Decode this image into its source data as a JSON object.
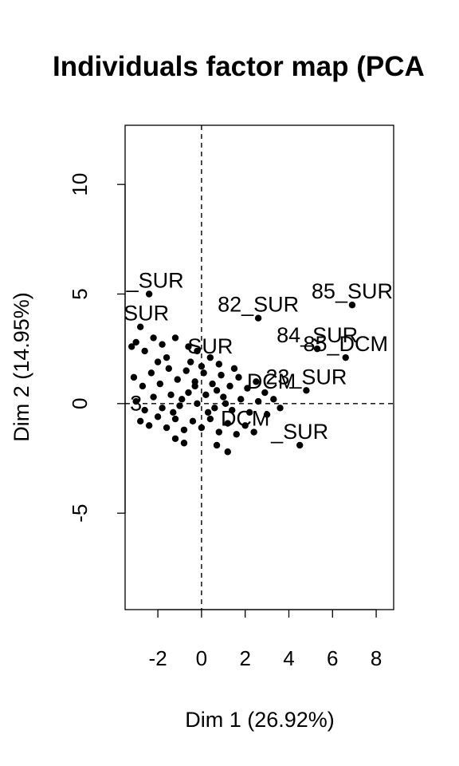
{
  "chart_data": {
    "type": "scatter",
    "title": "Individuals factor map (PCA",
    "xlabel": "Dim 1 (26.92%)",
    "ylabel": "Dim 2 (14.95%)",
    "xlim": [
      -3.5,
      8.8
    ],
    "ylim": [
      -9.4,
      12.7
    ],
    "xticks": [
      -2,
      0,
      2,
      4,
      6,
      8
    ],
    "yticks": [
      -5,
      0,
      5,
      10
    ],
    "reference_lines": {
      "x": 0,
      "y": 0
    },
    "grid": false,
    "legend": "none",
    "point_color": "#000000",
    "labeled_points": [
      {
        "label": "3_SUR",
        "x": -2.4,
        "y": 5.0
      },
      {
        "label": "_SUR",
        "x": -2.8,
        "y": 3.5
      },
      {
        "label": "82_SUR",
        "x": 2.6,
        "y": 3.9
      },
      {
        "label": "85_SUR",
        "x": 6.9,
        "y": 4.5
      },
      {
        "label": "84_SUR",
        "x": 5.3,
        "y": 2.5
      },
      {
        "label": "85_DCM",
        "x": 6.6,
        "y": 2.1
      },
      {
        "label": "SUR",
        "x": 0.4,
        "y": 2.0
      },
      {
        "label": "23_SUR",
        "x": 4.8,
        "y": 0.6
      },
      {
        "label": "DCM",
        "x": 3.2,
        "y": 0.4
      },
      {
        "label": "_SUR",
        "x": 4.5,
        "y": -1.9
      },
      {
        "label": "DCM",
        "x": 2.0,
        "y": -1.3
      },
      {
        "label": "3",
        "x": -3.0,
        "y": -0.6
      }
    ],
    "points": [
      {
        "x": -2.4,
        "y": 5.0
      },
      {
        "x": -2.8,
        "y": 3.5
      },
      {
        "x": 2.6,
        "y": 3.9
      },
      {
        "x": 6.9,
        "y": 4.5
      },
      {
        "x": 5.3,
        "y": 2.5
      },
      {
        "x": 6.6,
        "y": 2.1
      },
      {
        "x": 4.8,
        "y": 0.6
      },
      {
        "x": 4.5,
        "y": -1.9
      },
      {
        "x": 1.2,
        "y": -2.2
      },
      {
        "x": -1.2,
        "y": -1.6
      },
      {
        "x": -0.8,
        "y": -1.8
      },
      {
        "x": 0.7,
        "y": -1.9
      },
      {
        "x": -3.2,
        "y": 2.6
      },
      {
        "x": -3.0,
        "y": 2.8
      },
      {
        "x": -2.6,
        "y": 2.4
      },
      {
        "x": -2.2,
        "y": 3.0
      },
      {
        "x": -1.8,
        "y": 2.7
      },
      {
        "x": -1.2,
        "y": 3.0
      },
      {
        "x": -0.6,
        "y": 2.6
      },
      {
        "x": -0.2,
        "y": 2.4
      },
      {
        "x": 0.4,
        "y": 2.1
      },
      {
        "x": -3.1,
        "y": 1.2
      },
      {
        "x": -2.7,
        "y": 0.8
      },
      {
        "x": -2.3,
        "y": 1.4
      },
      {
        "x": -1.9,
        "y": 0.9
      },
      {
        "x": -1.5,
        "y": 1.6
      },
      {
        "x": -1.1,
        "y": 1.1
      },
      {
        "x": -0.7,
        "y": 1.5
      },
      {
        "x": -0.3,
        "y": 1.0
      },
      {
        "x": 0.1,
        "y": 1.4
      },
      {
        "x": 0.5,
        "y": 0.9
      },
      {
        "x": 0.9,
        "y": 1.3
      },
      {
        "x": 1.3,
        "y": 0.8
      },
      {
        "x": 1.7,
        "y": 1.2
      },
      {
        "x": 2.1,
        "y": 0.7
      },
      {
        "x": 2.5,
        "y": 1.0
      },
      {
        "x": 2.9,
        "y": 0.5
      },
      {
        "x": 3.3,
        "y": 0.2
      },
      {
        "x": -3.0,
        "y": 0.1
      },
      {
        "x": -2.6,
        "y": -0.3
      },
      {
        "x": -2.2,
        "y": 0.3
      },
      {
        "x": -1.8,
        "y": -0.2
      },
      {
        "x": -1.4,
        "y": 0.4
      },
      {
        "x": -1.0,
        "y": -0.1
      },
      {
        "x": -0.6,
        "y": 0.5
      },
      {
        "x": -0.2,
        "y": 0.0
      },
      {
        "x": 0.2,
        "y": 0.4
      },
      {
        "x": 0.6,
        "y": -0.2
      },
      {
        "x": 1.0,
        "y": 0.3
      },
      {
        "x": 1.4,
        "y": -0.3
      },
      {
        "x": 1.8,
        "y": 0.2
      },
      {
        "x": 2.2,
        "y": -0.4
      },
      {
        "x": 2.6,
        "y": 0.1
      },
      {
        "x": 3.0,
        "y": -0.5
      },
      {
        "x": 3.6,
        "y": -0.2
      },
      {
        "x": -2.8,
        "y": -0.8
      },
      {
        "x": -2.4,
        "y": -1.0
      },
      {
        "x": -2.0,
        "y": -0.6
      },
      {
        "x": -1.6,
        "y": -1.1
      },
      {
        "x": -1.2,
        "y": -0.7
      },
      {
        "x": -0.8,
        "y": -1.2
      },
      {
        "x": -0.4,
        "y": -0.8
      },
      {
        "x": 0.0,
        "y": -1.1
      },
      {
        "x": 0.4,
        "y": -0.7
      },
      {
        "x": 0.8,
        "y": -1.3
      },
      {
        "x": 1.2,
        "y": -0.9
      },
      {
        "x": 1.6,
        "y": -1.4
      },
      {
        "x": 2.0,
        "y": -1.0
      },
      {
        "x": 2.4,
        "y": -1.3
      },
      {
        "x": -0.5,
        "y": 1.9
      },
      {
        "x": 0.0,
        "y": 1.7
      },
      {
        "x": 0.8,
        "y": 1.8
      },
      {
        "x": -1.6,
        "y": 2.1
      },
      {
        "x": -2.0,
        "y": 1.9
      },
      {
        "x": 1.5,
        "y": 1.6
      },
      {
        "x": -0.9,
        "y": 0.2
      },
      {
        "x": 0.3,
        "y": -0.4
      },
      {
        "x": 1.1,
        "y": 0.0
      },
      {
        "x": -0.3,
        "y": 0.8
      },
      {
        "x": 0.7,
        "y": 0.6
      },
      {
        "x": -1.3,
        "y": -0.4
      }
    ]
  }
}
